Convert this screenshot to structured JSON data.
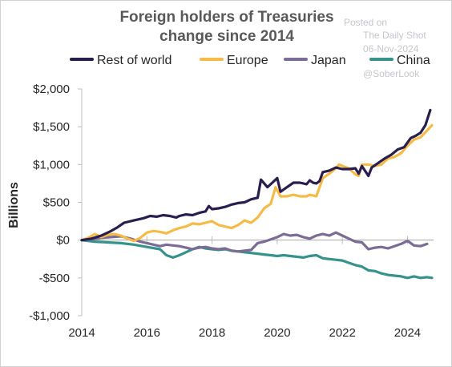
{
  "watermark": {
    "line1": "Posted on",
    "line2": "The Daily Shot",
    "line3": "06-Nov-2024",
    "line4": "@SoberLook"
  },
  "chart_data": {
    "type": "line",
    "title_line1": "Foreign holders of Treasuries",
    "title_line2": "change since 2014",
    "ylabel": "Billions",
    "xlabel": "",
    "xlim": [
      2014,
      2024.8
    ],
    "ylim": [
      -1000,
      2000
    ],
    "x_ticks": [
      2014,
      2016,
      2018,
      2020,
      2022,
      2024
    ],
    "x_tick_labels": [
      "2014",
      "2016",
      "2018",
      "2020",
      "2022",
      "2024"
    ],
    "y_ticks": [
      2000,
      1500,
      1000,
      500,
      0,
      -500,
      -1000
    ],
    "y_tick_labels": [
      "$2,000",
      "$1,500",
      "$1,000",
      "$500",
      "$0",
      "-$500",
      "-$1,000"
    ],
    "grid": false,
    "legend": "top",
    "series": [
      {
        "name": "Rest of world",
        "color": "#2a1e4e",
        "points": [
          [
            2014.0,
            0
          ],
          [
            2014.3,
            20
          ],
          [
            2014.6,
            60
          ],
          [
            2014.9,
            120
          ],
          [
            2015.1,
            170
          ],
          [
            2015.3,
            230
          ],
          [
            2015.6,
            260
          ],
          [
            2015.9,
            290
          ],
          [
            2016.1,
            320
          ],
          [
            2016.3,
            310
          ],
          [
            2016.5,
            330
          ],
          [
            2016.7,
            320
          ],
          [
            2016.9,
            300
          ],
          [
            2017.0,
            320
          ],
          [
            2017.2,
            340
          ],
          [
            2017.4,
            330
          ],
          [
            2017.6,
            360
          ],
          [
            2017.8,
            380
          ],
          [
            2017.9,
            450
          ],
          [
            2018.0,
            410
          ],
          [
            2018.2,
            420
          ],
          [
            2018.4,
            440
          ],
          [
            2018.6,
            470
          ],
          [
            2018.8,
            490
          ],
          [
            2019.0,
            500
          ],
          [
            2019.2,
            540
          ],
          [
            2019.4,
            560
          ],
          [
            2019.5,
            800
          ],
          [
            2019.7,
            700
          ],
          [
            2019.85,
            760
          ],
          [
            2020.0,
            820
          ],
          [
            2020.1,
            640
          ],
          [
            2020.3,
            700
          ],
          [
            2020.5,
            760
          ],
          [
            2020.7,
            760
          ],
          [
            2020.9,
            740
          ],
          [
            2021.0,
            790
          ],
          [
            2021.1,
            760
          ],
          [
            2021.2,
            750
          ],
          [
            2021.3,
            780
          ],
          [
            2021.4,
            900
          ],
          [
            2021.6,
            920
          ],
          [
            2021.8,
            960
          ],
          [
            2022.0,
            940
          ],
          [
            2022.2,
            940
          ],
          [
            2022.4,
            950
          ],
          [
            2022.5,
            880
          ],
          [
            2022.6,
            980
          ],
          [
            2022.8,
            850
          ],
          [
            2022.9,
            960
          ],
          [
            2023.1,
            1020
          ],
          [
            2023.3,
            1080
          ],
          [
            2023.5,
            1130
          ],
          [
            2023.7,
            1200
          ],
          [
            2023.9,
            1230
          ],
          [
            2024.1,
            1350
          ],
          [
            2024.25,
            1380
          ],
          [
            2024.4,
            1420
          ],
          [
            2024.55,
            1520
          ],
          [
            2024.7,
            1720
          ]
        ]
      },
      {
        "name": "Europe",
        "color": "#f6bb47",
        "points": [
          [
            2014.0,
            0
          ],
          [
            2014.2,
            30
          ],
          [
            2014.4,
            80
          ],
          [
            2014.6,
            40
          ],
          [
            2014.8,
            70
          ],
          [
            2015.0,
            80
          ],
          [
            2015.2,
            60
          ],
          [
            2015.4,
            20
          ],
          [
            2015.6,
            -10
          ],
          [
            2015.8,
            30
          ],
          [
            2016.0,
            100
          ],
          [
            2016.2,
            120
          ],
          [
            2016.4,
            110
          ],
          [
            2016.6,
            90
          ],
          [
            2016.8,
            130
          ],
          [
            2017.0,
            160
          ],
          [
            2017.2,
            180
          ],
          [
            2017.4,
            220
          ],
          [
            2017.6,
            210
          ],
          [
            2017.8,
            230
          ],
          [
            2018.0,
            250
          ],
          [
            2018.2,
            200
          ],
          [
            2018.4,
            180
          ],
          [
            2018.6,
            160
          ],
          [
            2018.8,
            200
          ],
          [
            2019.0,
            260
          ],
          [
            2019.2,
            230
          ],
          [
            2019.4,
            300
          ],
          [
            2019.6,
            420
          ],
          [
            2019.8,
            480
          ],
          [
            2019.95,
            700
          ],
          [
            2020.1,
            580
          ],
          [
            2020.3,
            580
          ],
          [
            2020.5,
            600
          ],
          [
            2020.7,
            580
          ],
          [
            2020.9,
            580
          ],
          [
            2021.0,
            600
          ],
          [
            2021.2,
            580
          ],
          [
            2021.4,
            820
          ],
          [
            2021.6,
            880
          ],
          [
            2021.8,
            950
          ],
          [
            2021.9,
            1000
          ],
          [
            2022.0,
            980
          ],
          [
            2022.2,
            950
          ],
          [
            2022.4,
            870
          ],
          [
            2022.5,
            850
          ],
          [
            2022.6,
            1000
          ],
          [
            2022.8,
            1000
          ],
          [
            2023.0,
            980
          ],
          [
            2023.2,
            1000
          ],
          [
            2023.4,
            1080
          ],
          [
            2023.6,
            1100
          ],
          [
            2023.8,
            1150
          ],
          [
            2024.0,
            1250
          ],
          [
            2024.2,
            1330
          ],
          [
            2024.4,
            1360
          ],
          [
            2024.6,
            1450
          ],
          [
            2024.75,
            1520
          ]
        ]
      },
      {
        "name": "Japan",
        "color": "#7b6c95",
        "points": [
          [
            2014.0,
            0
          ],
          [
            2014.3,
            10
          ],
          [
            2014.6,
            30
          ],
          [
            2014.9,
            40
          ],
          [
            2015.2,
            50
          ],
          [
            2015.5,
            20
          ],
          [
            2015.8,
            -20
          ],
          [
            2016.0,
            -40
          ],
          [
            2016.2,
            -60
          ],
          [
            2016.4,
            -80
          ],
          [
            2016.6,
            -60
          ],
          [
            2016.8,
            -70
          ],
          [
            2017.0,
            -80
          ],
          [
            2017.2,
            -100
          ],
          [
            2017.4,
            -120
          ],
          [
            2017.6,
            -100
          ],
          [
            2017.8,
            -90
          ],
          [
            2018.0,
            -110
          ],
          [
            2018.2,
            -120
          ],
          [
            2018.4,
            -110
          ],
          [
            2018.6,
            -140
          ],
          [
            2018.8,
            -150
          ],
          [
            2019.0,
            -140
          ],
          [
            2019.2,
            -130
          ],
          [
            2019.4,
            -40
          ],
          [
            2019.6,
            -20
          ],
          [
            2019.8,
            10
          ],
          [
            2020.0,
            40
          ],
          [
            2020.2,
            80
          ],
          [
            2020.4,
            60
          ],
          [
            2020.6,
            70
          ],
          [
            2020.8,
            40
          ],
          [
            2021.0,
            20
          ],
          [
            2021.2,
            60
          ],
          [
            2021.4,
            80
          ],
          [
            2021.6,
            60
          ],
          [
            2021.8,
            100
          ],
          [
            2022.0,
            60
          ],
          [
            2022.2,
            20
          ],
          [
            2022.4,
            -20
          ],
          [
            2022.6,
            -30
          ],
          [
            2022.8,
            -120
          ],
          [
            2023.0,
            -100
          ],
          [
            2023.2,
            -90
          ],
          [
            2023.4,
            -110
          ],
          [
            2023.6,
            -80
          ],
          [
            2023.8,
            -50
          ],
          [
            2024.0,
            -10
          ],
          [
            2024.2,
            -70
          ],
          [
            2024.4,
            -80
          ],
          [
            2024.6,
            -50
          ]
        ]
      },
      {
        "name": "China",
        "color": "#35928c",
        "points": [
          [
            2014.0,
            0
          ],
          [
            2014.4,
            -20
          ],
          [
            2014.8,
            -30
          ],
          [
            2015.2,
            -40
          ],
          [
            2015.6,
            -60
          ],
          [
            2016.0,
            -90
          ],
          [
            2016.4,
            -120
          ],
          [
            2016.6,
            -200
          ],
          [
            2016.8,
            -230
          ],
          [
            2017.0,
            -200
          ],
          [
            2017.2,
            -160
          ],
          [
            2017.4,
            -120
          ],
          [
            2017.6,
            -90
          ],
          [
            2017.8,
            -110
          ],
          [
            2018.0,
            -120
          ],
          [
            2018.2,
            -130
          ],
          [
            2018.4,
            -120
          ],
          [
            2018.6,
            -140
          ],
          [
            2018.8,
            -150
          ],
          [
            2019.0,
            -160
          ],
          [
            2019.2,
            -170
          ],
          [
            2019.4,
            -180
          ],
          [
            2019.6,
            -190
          ],
          [
            2019.8,
            -200
          ],
          [
            2020.0,
            -210
          ],
          [
            2020.2,
            -200
          ],
          [
            2020.4,
            -210
          ],
          [
            2020.6,
            -220
          ],
          [
            2020.8,
            -230
          ],
          [
            2021.0,
            -210
          ],
          [
            2021.2,
            -200
          ],
          [
            2021.4,
            -240
          ],
          [
            2021.6,
            -250
          ],
          [
            2021.8,
            -260
          ],
          [
            2022.0,
            -270
          ],
          [
            2022.2,
            -300
          ],
          [
            2022.4,
            -330
          ],
          [
            2022.6,
            -350
          ],
          [
            2022.8,
            -400
          ],
          [
            2023.0,
            -410
          ],
          [
            2023.2,
            -440
          ],
          [
            2023.4,
            -460
          ],
          [
            2023.6,
            -470
          ],
          [
            2023.8,
            -480
          ],
          [
            2024.0,
            -500
          ],
          [
            2024.2,
            -480
          ],
          [
            2024.4,
            -500
          ],
          [
            2024.6,
            -490
          ],
          [
            2024.75,
            -500
          ]
        ]
      }
    ]
  }
}
